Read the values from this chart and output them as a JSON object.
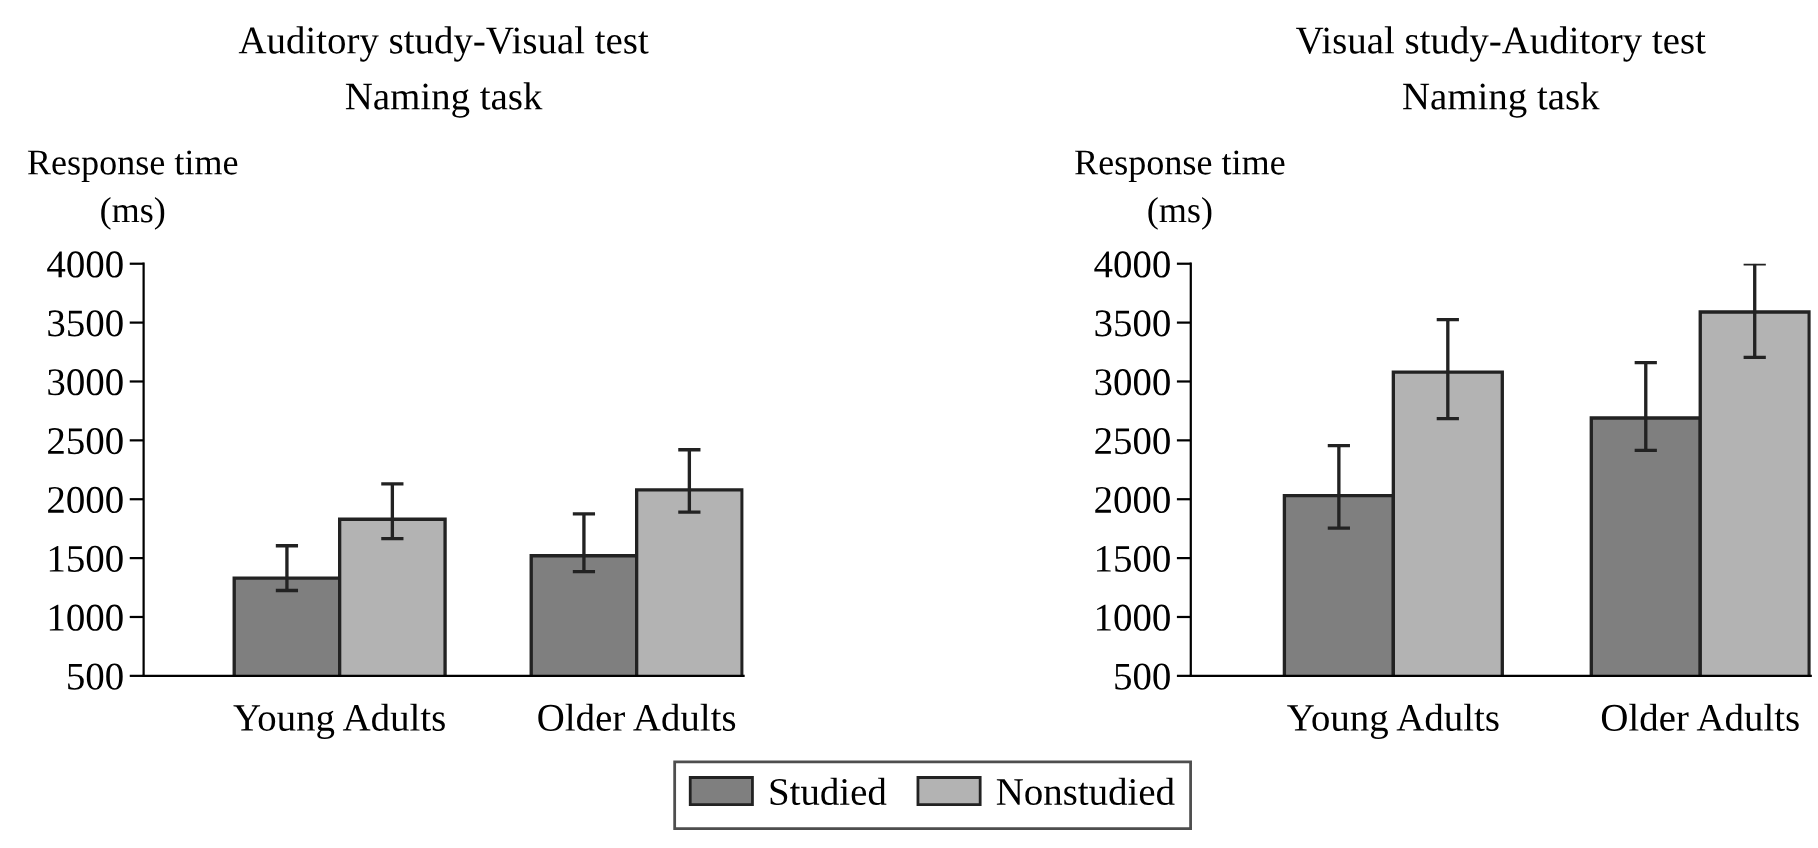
{
  "chart_data": [
    {
      "type": "bar",
      "title": "Auditory study-Visual test",
      "subtitle": "Naming task",
      "ylabel": "Response time\n(ms)",
      "categories": [
        "Young Adults",
        "Older Adults"
      ],
      "ylim": [
        500,
        4000
      ],
      "yticks": [
        500,
        1000,
        1500,
        2000,
        2500,
        3000,
        3500,
        4000
      ],
      "legend": "bottom",
      "series": [
        {
          "name": "Studied",
          "color": "#7f7f7f",
          "values": [
            1330,
            1520
          ],
          "errors": [
            [
              1225,
              1605
            ],
            [
              1385,
              1875
            ]
          ]
        },
        {
          "name": "Nonstudied",
          "color": "#b3b3b3",
          "values": [
            1830,
            2080
          ],
          "errors": [
            [
              1665,
              2130
            ],
            [
              1890,
              2420
            ]
          ]
        }
      ]
    },
    {
      "type": "bar",
      "title": "Visual study-Auditory test",
      "subtitle": "Naming task",
      "ylabel": "Response time\n(ms)",
      "categories": [
        "Young Adults",
        "Older Adults"
      ],
      "ylim": [
        500,
        4000
      ],
      "yticks": [
        500,
        1000,
        1500,
        2000,
        2500,
        3000,
        3500,
        4000
      ],
      "series": [
        {
          "color": "#7f7f7f",
          "values": [
            2030,
            2690
          ],
          "errors": [
            [
              1755,
              2455
            ],
            [
              2415,
              3160
            ]
          ]
        },
        {
          "color": "#b3b3b3",
          "values": [
            3080,
            3590
          ],
          "errors": [
            [
              2685,
              3525
            ],
            [
              3205,
              4000
            ]
          ]
        }
      ]
    }
  ]
}
